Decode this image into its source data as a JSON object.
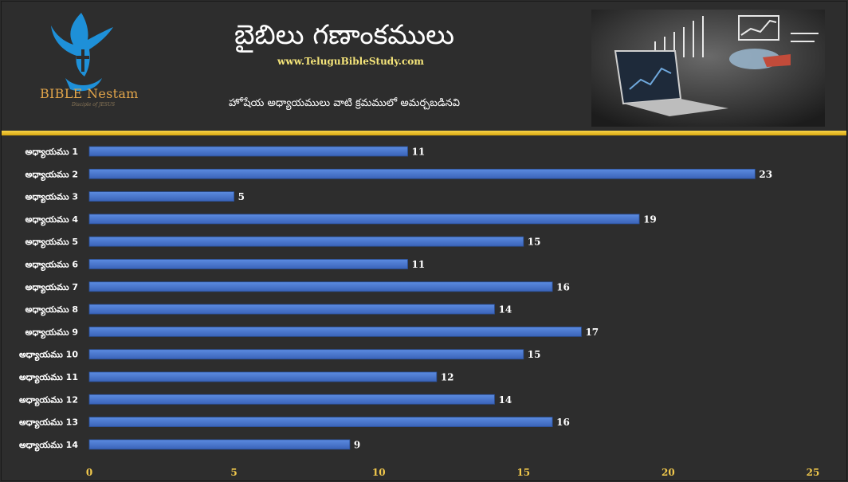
{
  "header": {
    "title": "బైబిలు గణాంకములు",
    "site_url": "www.TeluguBibleStudy.com",
    "subtitle": "హోషేయ అధ్యాయములు వాటి క్రమములో అమర్చబడినవి",
    "logo_text": "BIBLE Nestam",
    "logo_tagline": "Disciple of JESUS"
  },
  "colors": {
    "background": "#2d2d2d",
    "bar": "#4472c4",
    "divider": "#f2c94c",
    "tick_label": "#f2c94c",
    "logo_bird": "#1e90d8",
    "logo_text": "#e0a44a"
  },
  "chart_data": {
    "type": "bar",
    "orientation": "horizontal",
    "categories": [
      "అధ్యాయము 1",
      "అధ్యాయము 2",
      "అధ్యాయము 3",
      "అధ్యాయము 4",
      "అధ్యాయము 5",
      "అధ్యాయము 6",
      "అధ్యాయము 7",
      "అధ్యాయము 8",
      "అధ్యాయము 9",
      "అధ్యాయము 10",
      "అధ్యాయము 11",
      "అధ్యాయము 12",
      "అధ్యాయము 13",
      "అధ్యాయము 14"
    ],
    "values": [
      11,
      23,
      5,
      19,
      15,
      11,
      16,
      14,
      17,
      15,
      12,
      14,
      16,
      9
    ],
    "xlim": [
      0,
      25
    ],
    "xticks": [
      0,
      5,
      10,
      15,
      20,
      25
    ],
    "grid": false,
    "legend": "none",
    "data_labels": true
  }
}
